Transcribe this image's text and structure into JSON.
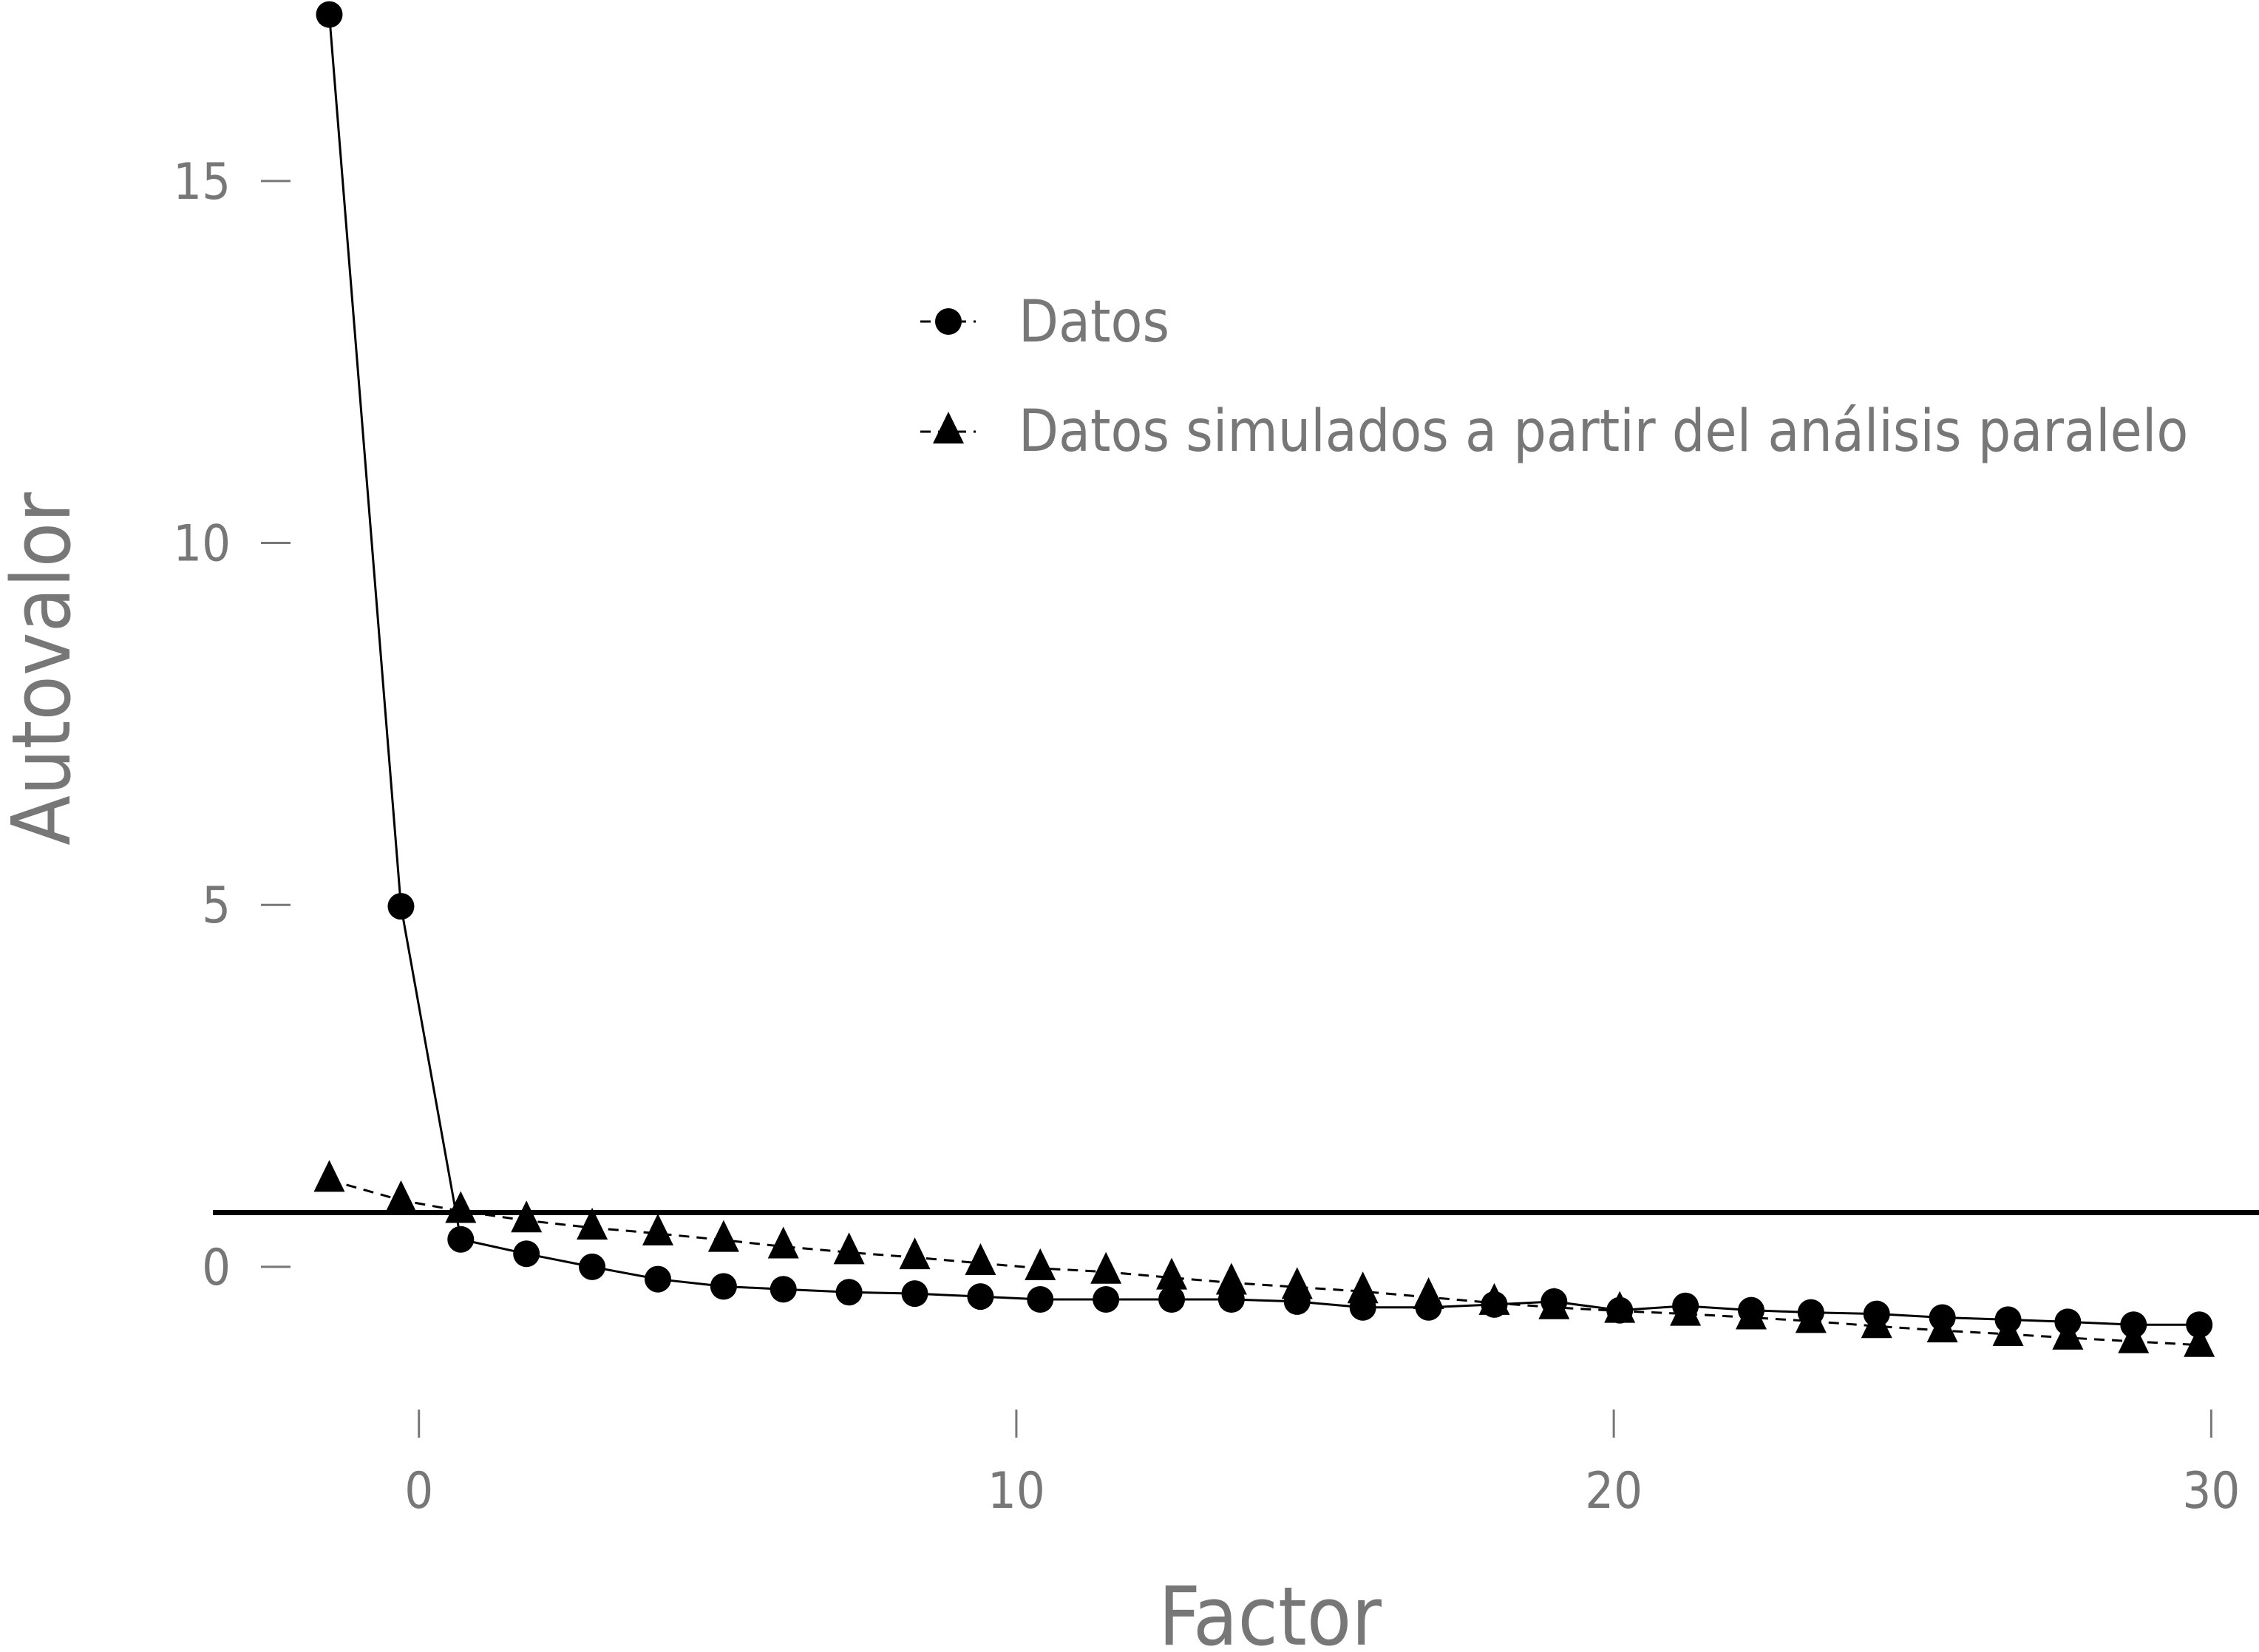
{
  "chart_data": {
    "type": "line",
    "xlabel": "Factor",
    "ylabel": "Autovalor",
    "xlim": [
      -3.3,
      30.8
    ],
    "ylim": [
      -1.9,
      17.5
    ],
    "x_ticks": [
      0,
      10,
      20,
      30
    ],
    "y_ticks": [
      0,
      5,
      10,
      15
    ],
    "reference_line": {
      "y": 0.75
    },
    "grid": false,
    "legend_position": "top-center",
    "colors": {
      "series": "#000000",
      "text": "#777777"
    },
    "series": [
      {
        "name": "Datos",
        "marker": "circle",
        "line_style": "solid",
        "x": [
          -1.5,
          -0.3,
          0.7,
          1.8,
          2.9,
          4.0,
          5.1,
          6.1,
          7.2,
          8.3,
          9.4,
          10.4,
          11.5,
          12.6,
          13.6,
          14.7,
          15.8,
          16.9,
          18.0,
          19.0,
          20.1,
          21.2,
          22.3,
          23.3,
          24.4,
          25.5,
          26.6,
          27.6,
          28.7,
          29.8
        ],
        "y": [
          17.3,
          4.98,
          0.38,
          0.18,
          0.0,
          -0.17,
          -0.27,
          -0.31,
          -0.35,
          -0.37,
          -0.41,
          -0.45,
          -0.45,
          -0.45,
          -0.45,
          -0.48,
          -0.56,
          -0.56,
          -0.52,
          -0.48,
          -0.6,
          -0.54,
          -0.6,
          -0.63,
          -0.65,
          -0.7,
          -0.73,
          -0.76,
          -0.8,
          -0.8
        ]
      },
      {
        "name": "Datos simulados a partir del análisis paralelo",
        "marker": "triangle",
        "line_style": "dashed",
        "x": [
          -1.5,
          -0.3,
          0.7,
          1.8,
          2.9,
          4.0,
          5.1,
          6.1,
          7.2,
          8.3,
          9.4,
          10.4,
          11.5,
          12.6,
          13.6,
          14.7,
          15.8,
          16.9,
          18.0,
          19.0,
          20.1,
          21.2,
          22.3,
          23.3,
          24.4,
          25.5,
          26.6,
          27.6,
          28.7,
          29.8
        ],
        "y": [
          1.2,
          0.92,
          0.77,
          0.64,
          0.54,
          0.46,
          0.37,
          0.28,
          0.2,
          0.13,
          0.05,
          -0.02,
          -0.07,
          -0.15,
          -0.22,
          -0.28,
          -0.34,
          -0.42,
          -0.5,
          -0.56,
          -0.61,
          -0.65,
          -0.7,
          -0.75,
          -0.82,
          -0.88,
          -0.93,
          -0.98,
          -1.03,
          -1.08
        ]
      }
    ]
  }
}
